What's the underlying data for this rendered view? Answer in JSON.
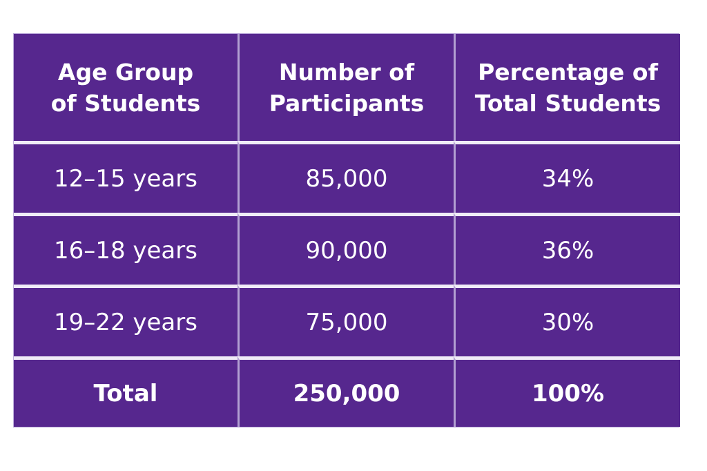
{
  "table": {
    "headers": [
      "Age Group\nof Students",
      "Number of\nParticipants",
      "Percentage of\nTotal Students"
    ],
    "rows": [
      [
        "12–15 years",
        "85,000",
        "34%"
      ],
      [
        "16–18 years",
        "90,000",
        "36%"
      ],
      [
        "19–22 years",
        "75,000",
        "30%"
      ],
      [
        "Total",
        "250,000",
        "100%"
      ]
    ]
  },
  "chart_data": {
    "type": "table",
    "title": "",
    "columns": [
      "Age Group of Students",
      "Number of Participants",
      "Percentage of Total Students"
    ],
    "rows": [
      [
        "12–15 years",
        "85,000",
        "34%"
      ],
      [
        "16–18 years",
        "90,000",
        "36%"
      ],
      [
        "19–22 years",
        "75,000",
        "30%"
      ],
      [
        "Total",
        "250,000",
        "100%"
      ]
    ],
    "age_groups": [
      "12–15 years",
      "16–18 years",
      "19–22 years"
    ],
    "participants": [
      85000,
      90000,
      75000
    ],
    "percentages": [
      34,
      36,
      30
    ],
    "total_participants": 250000,
    "total_percentage": 100
  },
  "colors": {
    "cell_background": "#56278E",
    "row_divider": "#F0ECF7",
    "column_divider": "#B2A0D2",
    "text": "#FFFFFF",
    "page_background": "#FFFFFF"
  }
}
